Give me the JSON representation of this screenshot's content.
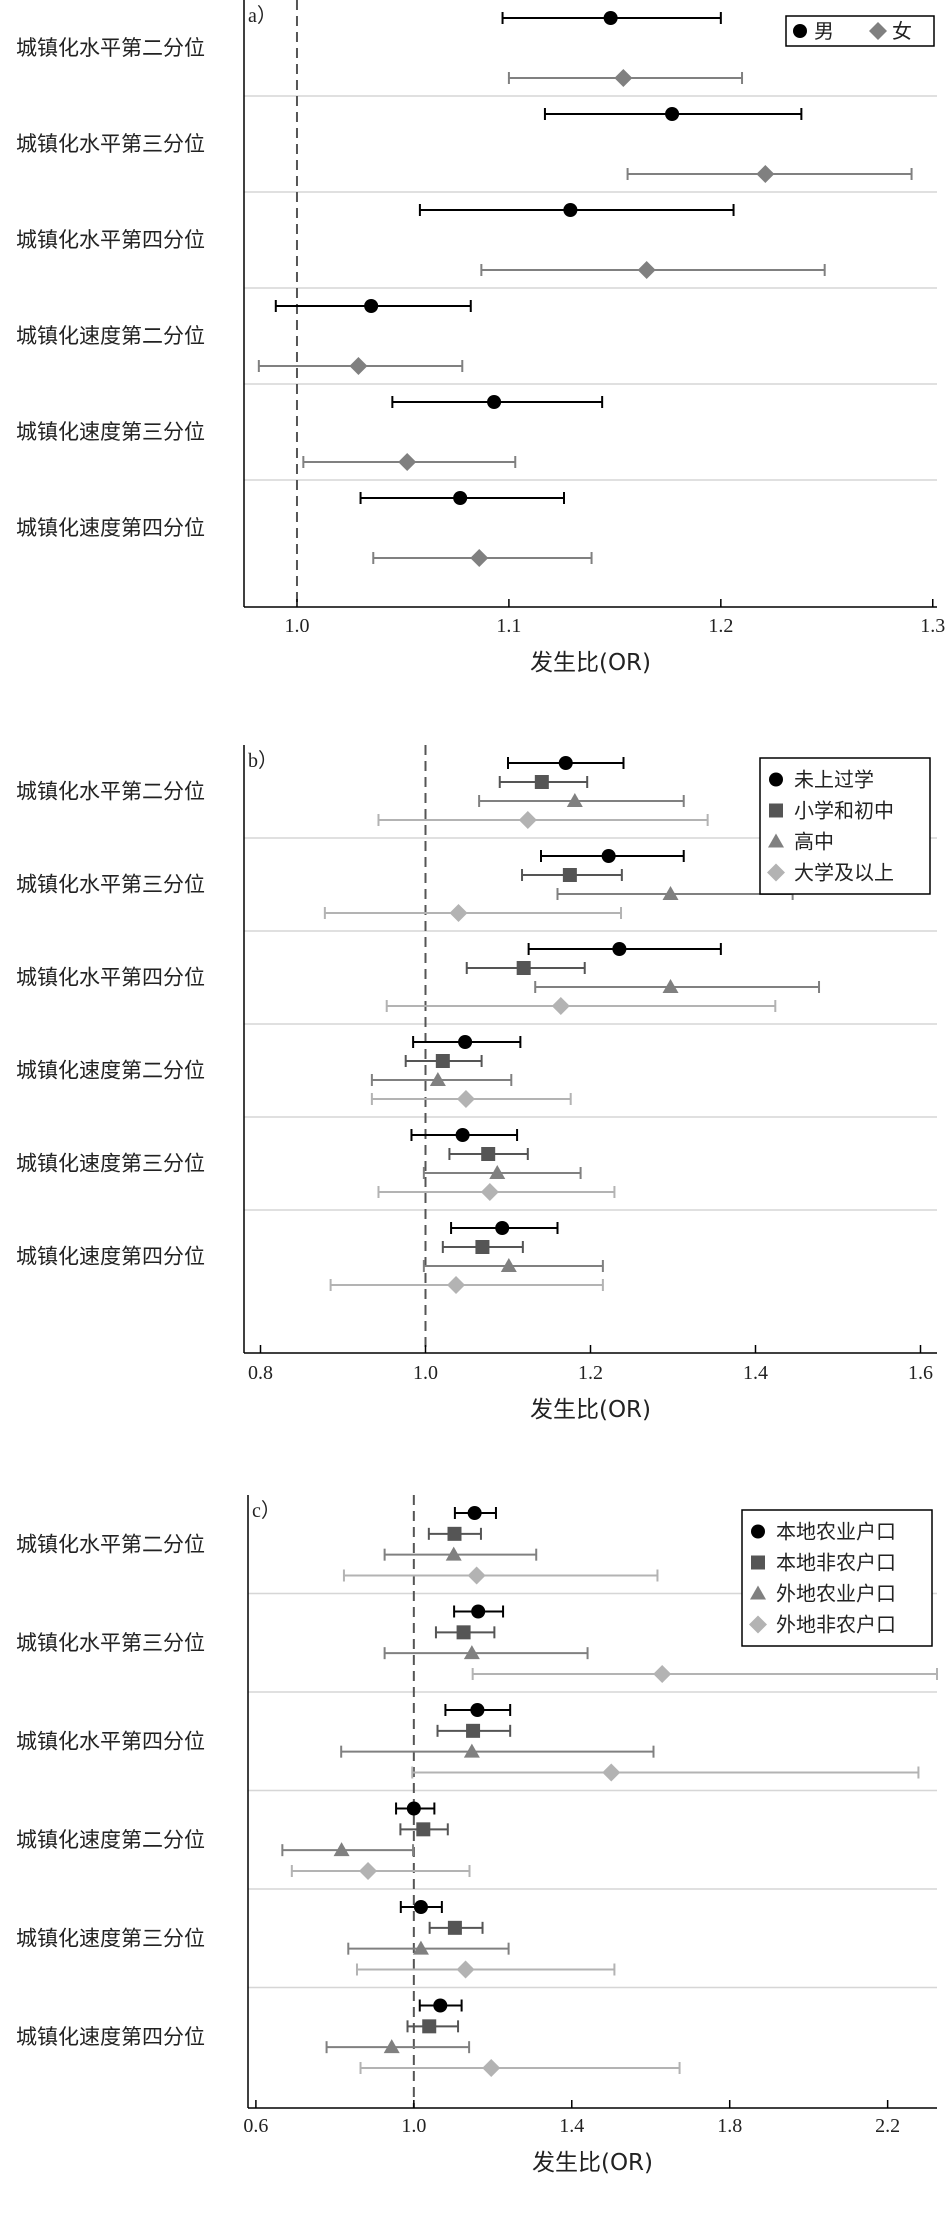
{
  "chart_data": [
    {
      "type": "scatter",
      "panel_label": "a）",
      "categories": [
        "城镇化水平第二分位",
        "城镇化水平第三分位",
        "城镇化水平第四分位",
        "城镇化速度第二分位",
        "城镇化速度第三分位",
        "城镇化速度第四分位"
      ],
      "xlabel": "发生比(OR)",
      "xlim": [
        0.975,
        1.302
      ],
      "xticks": [
        1.0,
        1.1,
        1.2,
        1.3
      ],
      "xtick_labels": [
        "1.0",
        "1.1",
        "1.2",
        "1.3"
      ],
      "reference_line": 1.0,
      "legend_position": "top-right",
      "series": [
        {
          "name": "男",
          "marker": "circle",
          "color": "#000000",
          "values": [
            1.148,
            1.177,
            1.129,
            1.035,
            1.093,
            1.077
          ],
          "ci_low": [
            1.097,
            1.117,
            1.058,
            0.99,
            1.045,
            1.03
          ],
          "ci_high": [
            1.2,
            1.238,
            1.206,
            1.082,
            1.144,
            1.126
          ]
        },
        {
          "name": "女",
          "marker": "diamond",
          "color": "#808080",
          "values": [
            1.154,
            1.221,
            1.165,
            1.029,
            1.052,
            1.086
          ],
          "ci_low": [
            1.1,
            1.156,
            1.087,
            0.982,
            1.003,
            1.036
          ],
          "ci_high": [
            1.21,
            1.29,
            1.249,
            1.078,
            1.103,
            1.139
          ]
        }
      ]
    },
    {
      "type": "scatter",
      "panel_label": "b）",
      "categories": [
        "城镇化水平第二分位",
        "城镇化水平第三分位",
        "城镇化水平第四分位",
        "城镇化速度第二分位",
        "城镇化速度第三分位",
        "城镇化速度第四分位"
      ],
      "xlabel": "发生比(OR)",
      "xlim": [
        0.78,
        1.62
      ],
      "xticks": [
        0.8,
        1.0,
        1.2,
        1.4,
        1.6
      ],
      "xtick_labels": [
        "0.8",
        "1.0",
        "1.2",
        "1.4",
        "1.6"
      ],
      "reference_line": 1.0,
      "legend_position": "top-right",
      "series": [
        {
          "name": "未上过学",
          "marker": "circle",
          "color": "#000000",
          "values": [
            1.17,
            1.222,
            1.235,
            1.048,
            1.045,
            1.093
          ],
          "ci_low": [
            1.1,
            1.14,
            1.125,
            0.985,
            0.983,
            1.031
          ],
          "ci_high": [
            1.24,
            1.313,
            1.358,
            1.115,
            1.111,
            1.16
          ]
        },
        {
          "name": "小学和初中",
          "marker": "square",
          "color": "#555555",
          "values": [
            1.141,
            1.175,
            1.119,
            1.021,
            1.076,
            1.069
          ],
          "ci_low": [
            1.09,
            1.117,
            1.05,
            0.976,
            1.029,
            1.021
          ],
          "ci_high": [
            1.196,
            1.238,
            1.193,
            1.068,
            1.124,
            1.118
          ]
        },
        {
          "name": "高中",
          "marker": "triangle",
          "color": "#808080",
          "values": [
            1.181,
            1.297,
            1.297,
            1.015,
            1.087,
            1.101
          ],
          "ci_low": [
            1.065,
            1.16,
            1.133,
            0.935,
            0.998,
            0.998
          ],
          "ci_high": [
            1.313,
            1.445,
            1.477,
            1.104,
            1.188,
            1.215
          ]
        },
        {
          "name": "大学及以上",
          "marker": "diamond",
          "color": "#b3b3b3",
          "values": [
            1.124,
            1.04,
            1.164,
            1.049,
            1.078,
            1.037
          ],
          "ci_low": [
            0.943,
            0.878,
            0.953,
            0.935,
            0.943,
            0.885
          ],
          "ci_high": [
            1.342,
            1.237,
            1.424,
            1.176,
            1.229,
            1.215
          ]
        }
      ]
    },
    {
      "type": "scatter",
      "panel_label": "c）",
      "categories": [
        "城镇化水平第二分位",
        "城镇化水平第三分位",
        "城镇化水平第四分位",
        "城镇化速度第二分位",
        "城镇化速度第三分位",
        "城镇化速度第四分位"
      ],
      "xlabel": "发生比(OR)",
      "xlim": [
        0.58,
        2.325
      ],
      "xticks": [
        0.6,
        1.0,
        1.4,
        1.8,
        2.2
      ],
      "xtick_labels": [
        "0.6",
        "1.0",
        "1.4",
        "1.8",
        "2.2"
      ],
      "reference_line": 1.0,
      "legend_position": "top-right",
      "series": [
        {
          "name": "本地农业户口",
          "marker": "circle",
          "color": "#000000",
          "values": [
            1.154,
            1.163,
            1.161,
            1.0,
            1.018,
            1.067
          ],
          "ci_low": [
            1.104,
            1.102,
            1.08,
            0.955,
            0.967,
            1.015
          ],
          "ci_high": [
            1.208,
            1.226,
            1.244,
            1.052,
            1.071,
            1.121
          ]
        },
        {
          "name": "本地非农户口",
          "marker": "square",
          "color": "#555555",
          "values": [
            1.103,
            1.126,
            1.15,
            1.024,
            1.104,
            1.039
          ],
          "ci_low": [
            1.038,
            1.056,
            1.06,
            0.966,
            1.04,
            0.984
          ],
          "ci_high": [
            1.17,
            1.204,
            1.244,
            1.086,
            1.174,
            1.112
          ]
        },
        {
          "name": "外地农业户口",
          "marker": "triangle",
          "color": "#808080",
          "values": [
            1.101,
            1.147,
            1.147,
            0.817,
            1.018,
            0.944
          ],
          "ci_low": [
            0.926,
            0.926,
            0.816,
            0.667,
            0.834,
            0.779
          ],
          "ci_high": [
            1.31,
            1.44,
            1.607,
            0.998,
            1.24,
            1.14
          ]
        },
        {
          "name": "外地非农户口",
          "marker": "diamond",
          "color": "#b3b3b3",
          "values": [
            1.159,
            1.629,
            1.5,
            0.884,
            1.131,
            1.196
          ],
          "ci_low": [
            0.823,
            1.149,
            0.996,
            0.691,
            0.856,
            0.865
          ],
          "ci_high": [
            1.617,
            2.325,
            2.278,
            1.141,
            1.508,
            1.673
          ]
        }
      ]
    }
  ]
}
